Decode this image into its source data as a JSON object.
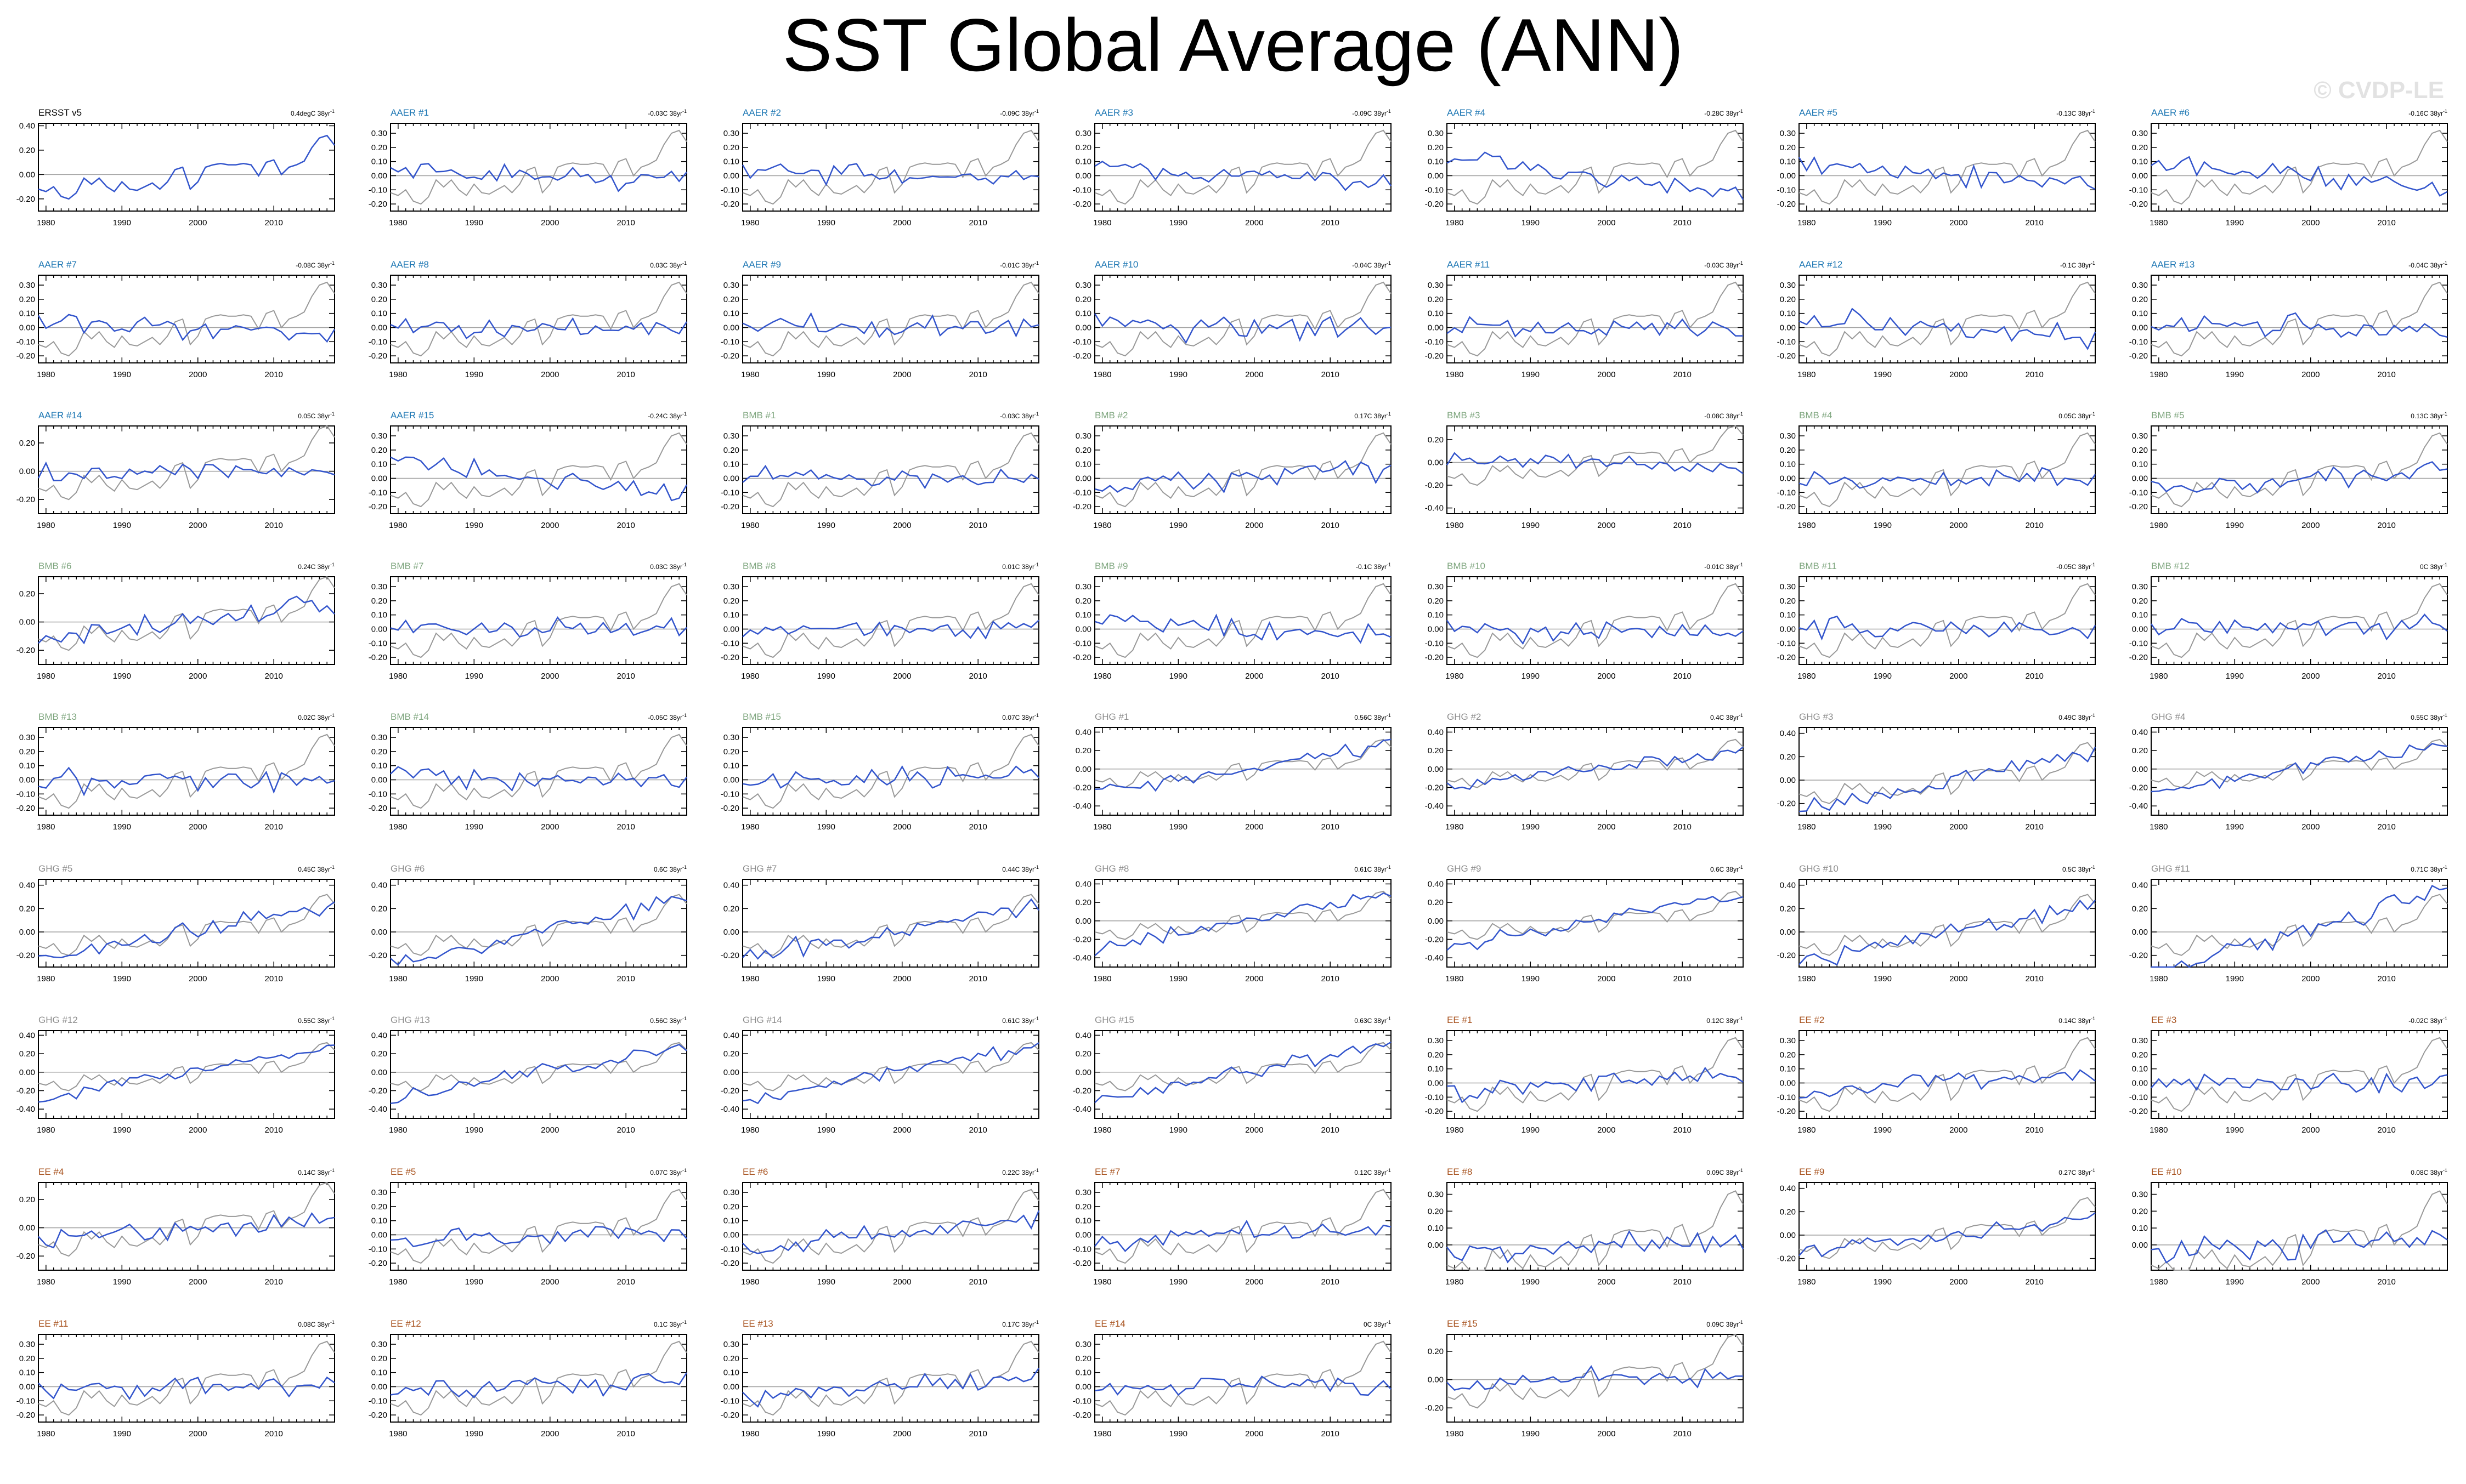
{
  "title": "SST Global Average (ANN)",
  "watermark": "© CVDP-LE",
  "chart_data": {
    "type": "line",
    "x_range": [
      1979,
      2018
    ],
    "x_ticks": [
      1980,
      1990,
      2000,
      2010
    ],
    "reference_series_color": "#999999",
    "colors": {
      "ERSST": "#000000",
      "AAER": "#1f78b4",
      "BMB": "#7fa67f",
      "GHG": "#8c8c8c",
      "EE": "#a8531f",
      "line": "#3355cc",
      "obs": "#000000"
    },
    "observed": {
      "label": "ERSST v5",
      "trend": "0.4degC 38yr",
      "years": [
        1979,
        1980,
        1981,
        1982,
        1983,
        1984,
        1985,
        1986,
        1987,
        1988,
        1989,
        1990,
        1991,
        1992,
        1993,
        1994,
        1995,
        1996,
        1997,
        1998,
        1999,
        2000,
        2001,
        2002,
        2003,
        2004,
        2005,
        2006,
        2007,
        2008,
        2009,
        2010,
        2011,
        2012,
        2013,
        2014,
        2015,
        2016,
        2017,
        2018
      ],
      "values": [
        -0.12,
        -0.14,
        -0.1,
        -0.18,
        -0.2,
        -0.15,
        -0.03,
        -0.08,
        -0.03,
        -0.1,
        -0.14,
        -0.06,
        -0.12,
        -0.13,
        -0.1,
        -0.07,
        -0.12,
        -0.06,
        0.04,
        0.06,
        -0.12,
        -0.06,
        0.06,
        0.08,
        0.09,
        0.08,
        0.08,
        0.09,
        0.08,
        -0.01,
        0.1,
        0.12,
        0.0,
        0.06,
        0.08,
        0.11,
        0.22,
        0.3,
        0.32,
        0.24
      ]
    },
    "panels": [
      {
        "label": "ERSST v5",
        "group": "ERSST",
        "trend": "0.4degC 38yr",
        "yticks": [
          "0.40",
          "0.20",
          "0.00",
          "-0.20"
        ],
        "ylim": [
          -0.3,
          0.42
        ]
      },
      {
        "label": "AAER #1",
        "group": "AAER",
        "trend": "-0.03C 38yr",
        "yticks": [
          "0.30",
          "0.20",
          "0.10",
          "0.00",
          "-0.10",
          "-0.20"
        ],
        "ylim": [
          -0.25,
          0.37
        ]
      },
      {
        "label": "AAER #2",
        "group": "AAER",
        "trend": "-0.09C 38yr",
        "yticks": [
          "0.30",
          "0.20",
          "0.10",
          "0.00",
          "-0.10",
          "-0.20"
        ],
        "ylim": [
          -0.25,
          0.37
        ]
      },
      {
        "label": "AAER #3",
        "group": "AAER",
        "trend": "-0.09C 38yr",
        "yticks": [
          "0.30",
          "0.20",
          "0.10",
          "0.00",
          "-0.10",
          "-0.20"
        ],
        "ylim": [
          -0.25,
          0.37
        ]
      },
      {
        "label": "AAER #4",
        "group": "AAER",
        "trend": "-0.28C 38yr",
        "yticks": [
          "0.30",
          "0.20",
          "0.10",
          "0.00",
          "-0.10",
          "-0.20"
        ],
        "ylim": [
          -0.25,
          0.37
        ]
      },
      {
        "label": "AAER #5",
        "group": "AAER",
        "trend": "-0.13C 38yr",
        "yticks": [
          "0.30",
          "0.20",
          "0.10",
          "0.00",
          "-0.10",
          "-0.20"
        ],
        "ylim": [
          -0.25,
          0.37
        ]
      },
      {
        "label": "AAER #6",
        "group": "AAER",
        "trend": "-0.16C 38yr",
        "yticks": [
          "0.30",
          "0.20",
          "0.10",
          "0.00",
          "-0.10",
          "-0.20"
        ],
        "ylim": [
          -0.25,
          0.37
        ]
      },
      {
        "label": "AAER #7",
        "group": "AAER",
        "trend": "-0.08C 38yr",
        "yticks": [
          "0.30",
          "0.20",
          "0.10",
          "0.00",
          "-0.10",
          "-0.20"
        ],
        "ylim": [
          -0.25,
          0.37
        ]
      },
      {
        "label": "AAER #8",
        "group": "AAER",
        "trend": "0.03C 38yr",
        "yticks": [
          "0.30",
          "0.20",
          "0.10",
          "0.00",
          "-0.10",
          "-0.20"
        ],
        "ylim": [
          -0.25,
          0.37
        ]
      },
      {
        "label": "AAER #9",
        "group": "AAER",
        "trend": "-0.01C 38yr",
        "yticks": [
          "0.30",
          "0.20",
          "0.10",
          "0.00",
          "-0.10",
          "-0.20"
        ],
        "ylim": [
          -0.25,
          0.37
        ]
      },
      {
        "label": "AAER #10",
        "group": "AAER",
        "trend": "-0.04C 38yr",
        "yticks": [
          "0.30",
          "0.20",
          "0.10",
          "0.00",
          "-0.10",
          "-0.20"
        ],
        "ylim": [
          -0.25,
          0.37
        ]
      },
      {
        "label": "AAER #11",
        "group": "AAER",
        "trend": "-0.03C 38yr",
        "yticks": [
          "0.30",
          "0.20",
          "0.10",
          "0.00",
          "-0.10",
          "-0.20"
        ],
        "ylim": [
          -0.25,
          0.37
        ]
      },
      {
        "label": "AAER #12",
        "group": "AAER",
        "trend": "-0.1C 38yr",
        "yticks": [
          "0.30",
          "0.20",
          "0.10",
          "0.00",
          "-0.10",
          "-0.20"
        ],
        "ylim": [
          -0.25,
          0.37
        ]
      },
      {
        "label": "AAER #13",
        "group": "AAER",
        "trend": "-0.04C 38yr",
        "yticks": [
          "0.30",
          "0.20",
          "0.10",
          "0.00",
          "-0.10",
          "-0.20"
        ],
        "ylim": [
          -0.25,
          0.37
        ]
      },
      {
        "label": "AAER #14",
        "group": "AAER",
        "trend": "0.05C 38yr",
        "yticks": [
          "0.20",
          "0.00",
          "-0.20"
        ],
        "ylim": [
          -0.3,
          0.32
        ]
      },
      {
        "label": "AAER #15",
        "group": "AAER",
        "trend": "-0.24C 38yr",
        "yticks": [
          "0.30",
          "0.20",
          "0.10",
          "0.00",
          "-0.10",
          "-0.20"
        ],
        "ylim": [
          -0.25,
          0.37
        ]
      },
      {
        "label": "BMB #1",
        "group": "BMB",
        "trend": "-0.03C 38yr",
        "yticks": [
          "0.30",
          "0.20",
          "0.10",
          "0.00",
          "-0.10",
          "-0.20"
        ],
        "ylim": [
          -0.25,
          0.37
        ]
      },
      {
        "label": "BMB #2",
        "group": "BMB",
        "trend": "0.17C 38yr",
        "yticks": [
          "0.30",
          "0.20",
          "0.10",
          "0.00",
          "-0.10",
          "-0.20"
        ],
        "ylim": [
          -0.25,
          0.37
        ]
      },
      {
        "label": "BMB #3",
        "group": "BMB",
        "trend": "-0.08C 38yr",
        "yticks": [
          "0.20",
          "0.00",
          "-0.20",
          "-0.40"
        ],
        "ylim": [
          -0.45,
          0.32
        ]
      },
      {
        "label": "BMB #4",
        "group": "BMB",
        "trend": "0.05C 38yr",
        "yticks": [
          "0.30",
          "0.20",
          "0.10",
          "0.00",
          "-0.10",
          "-0.20"
        ],
        "ylim": [
          -0.25,
          0.37
        ]
      },
      {
        "label": "BMB #5",
        "group": "BMB",
        "trend": "0.13C 38yr",
        "yticks": [
          "0.30",
          "0.20",
          "0.10",
          "0.00",
          "-0.10",
          "-0.20"
        ],
        "ylim": [
          -0.25,
          0.37
        ]
      },
      {
        "label": "BMB #6",
        "group": "BMB",
        "trend": "0.24C 38yr",
        "yticks": [
          "0.20",
          "0.00",
          "-0.20"
        ],
        "ylim": [
          -0.3,
          0.32
        ]
      },
      {
        "label": "BMB #7",
        "group": "BMB",
        "trend": "0.03C 38yr",
        "yticks": [
          "0.30",
          "0.20",
          "0.10",
          "0.00",
          "-0.10",
          "-0.20"
        ],
        "ylim": [
          -0.25,
          0.37
        ]
      },
      {
        "label": "BMB #8",
        "group": "BMB",
        "trend": "0.01C 38yr",
        "yticks": [
          "0.30",
          "0.20",
          "0.10",
          "0.00",
          "-0.10",
          "-0.20"
        ],
        "ylim": [
          -0.25,
          0.37
        ]
      },
      {
        "label": "BMB #9",
        "group": "BMB",
        "trend": "-0.1C 38yr",
        "yticks": [
          "0.30",
          "0.20",
          "0.10",
          "0.00",
          "-0.10",
          "-0.20"
        ],
        "ylim": [
          -0.25,
          0.37
        ]
      },
      {
        "label": "BMB #10",
        "group": "BMB",
        "trend": "-0.01C 38yr",
        "yticks": [
          "0.30",
          "0.20",
          "0.10",
          "0.00",
          "-0.10",
          "-0.20"
        ],
        "ylim": [
          -0.25,
          0.37
        ]
      },
      {
        "label": "BMB #11",
        "group": "BMB",
        "trend": "-0.05C 38yr",
        "yticks": [
          "0.30",
          "0.20",
          "0.10",
          "0.00",
          "-0.10",
          "-0.20"
        ],
        "ylim": [
          -0.25,
          0.37
        ]
      },
      {
        "label": "BMB #12",
        "group": "BMB",
        "trend": "0C 38yr",
        "yticks": [
          "0.30",
          "0.20",
          "0.10",
          "0.00",
          "-0.10",
          "-0.20"
        ],
        "ylim": [
          -0.25,
          0.37
        ]
      },
      {
        "label": "BMB #13",
        "group": "BMB",
        "trend": "0.02C 38yr",
        "yticks": [
          "0.30",
          "0.20",
          "0.10",
          "0.00",
          "-0.10",
          "-0.20"
        ],
        "ylim": [
          -0.25,
          0.37
        ]
      },
      {
        "label": "BMB #14",
        "group": "BMB",
        "trend": "-0.05C 38yr",
        "yticks": [
          "0.30",
          "0.20",
          "0.10",
          "0.00",
          "-0.10",
          "-0.20"
        ],
        "ylim": [
          -0.25,
          0.37
        ]
      },
      {
        "label": "BMB #15",
        "group": "BMB",
        "trend": "0.07C 38yr",
        "yticks": [
          "0.30",
          "0.20",
          "0.10",
          "0.00",
          "-0.10",
          "-0.20"
        ],
        "ylim": [
          -0.25,
          0.37
        ]
      },
      {
        "label": "GHG #1",
        "group": "GHG",
        "trend": "0.56C 38yr",
        "yticks": [
          "0.40",
          "0.20",
          "0.00",
          "-0.20",
          "-0.40"
        ],
        "ylim": [
          -0.5,
          0.45
        ]
      },
      {
        "label": "GHG #2",
        "group": "GHG",
        "trend": "0.4C 38yr",
        "yticks": [
          "0.40",
          "0.20",
          "0.00",
          "-0.20",
          "-0.40"
        ],
        "ylim": [
          -0.5,
          0.45
        ]
      },
      {
        "label": "GHG #3",
        "group": "GHG",
        "trend": "0.49C 38yr",
        "yticks": [
          "0.40",
          "0.20",
          "0.00",
          "-0.20"
        ],
        "ylim": [
          -0.3,
          0.45
        ]
      },
      {
        "label": "GHG #4",
        "group": "GHG",
        "trend": "0.55C 38yr",
        "yticks": [
          "0.40",
          "0.20",
          "0.00",
          "-0.20",
          "-0.40"
        ],
        "ylim": [
          -0.5,
          0.45
        ]
      },
      {
        "label": "GHG #5",
        "group": "GHG",
        "trend": "0.45C 38yr",
        "yticks": [
          "0.40",
          "0.20",
          "0.00",
          "-0.20"
        ],
        "ylim": [
          -0.3,
          0.45
        ]
      },
      {
        "label": "GHG #6",
        "group": "GHG",
        "trend": "0.6C 38yr",
        "yticks": [
          "0.40",
          "0.20",
          "0.00",
          "-0.20"
        ],
        "ylim": [
          -0.3,
          0.45
        ]
      },
      {
        "label": "GHG #7",
        "group": "GHG",
        "trend": "0.44C 38yr",
        "yticks": [
          "0.40",
          "0.20",
          "0.00",
          "-0.20"
        ],
        "ylim": [
          -0.3,
          0.45
        ]
      },
      {
        "label": "GHG #8",
        "group": "GHG",
        "trend": "0.61C 38yr",
        "yticks": [
          "0.40",
          "0.20",
          "0.00",
          "-0.20",
          "-0.40"
        ],
        "ylim": [
          -0.5,
          0.45
        ]
      },
      {
        "label": "GHG #9",
        "group": "GHG",
        "trend": "0.6C 38yr",
        "yticks": [
          "0.40",
          "0.20",
          "0.00",
          "-0.20",
          "-0.40"
        ],
        "ylim": [
          -0.5,
          0.45
        ]
      },
      {
        "label": "GHG #10",
        "group": "GHG",
        "trend": "0.5C 38yr",
        "yticks": [
          "0.40",
          "0.20",
          "0.00",
          "-0.20"
        ],
        "ylim": [
          -0.3,
          0.45
        ]
      },
      {
        "label": "GHG #11",
        "group": "GHG",
        "trend": "0.71C 38yr",
        "yticks": [
          "0.40",
          "0.20",
          "0.00",
          "-0.20"
        ],
        "ylim": [
          -0.3,
          0.45
        ]
      },
      {
        "label": "GHG #12",
        "group": "GHG",
        "trend": "0.55C 38yr",
        "yticks": [
          "0.40",
          "0.20",
          "0.00",
          "-0.20",
          "-0.40"
        ],
        "ylim": [
          -0.5,
          0.45
        ]
      },
      {
        "label": "GHG #13",
        "group": "GHG",
        "trend": "0.56C 38yr",
        "yticks": [
          "0.40",
          "0.20",
          "0.00",
          "-0.20",
          "-0.40"
        ],
        "ylim": [
          -0.5,
          0.45
        ]
      },
      {
        "label": "GHG #14",
        "group": "GHG",
        "trend": "0.61C 38yr",
        "yticks": [
          "0.40",
          "0.20",
          "0.00",
          "-0.20",
          "-0.40"
        ],
        "ylim": [
          -0.5,
          0.45
        ]
      },
      {
        "label": "GHG #15",
        "group": "GHG",
        "trend": "0.63C 38yr",
        "yticks": [
          "0.40",
          "0.20",
          "0.00",
          "-0.20",
          "-0.40"
        ],
        "ylim": [
          -0.5,
          0.45
        ]
      },
      {
        "label": "EE #1",
        "group": "EE",
        "trend": "0.12C 38yr",
        "yticks": [
          "0.30",
          "0.20",
          "0.10",
          "0.00",
          "-0.10",
          "-0.20"
        ],
        "ylim": [
          -0.25,
          0.37
        ]
      },
      {
        "label": "EE #2",
        "group": "EE",
        "trend": "0.14C 38yr",
        "yticks": [
          "0.30",
          "0.20",
          "0.10",
          "0.00",
          "-0.10",
          "-0.20"
        ],
        "ylim": [
          -0.25,
          0.37
        ]
      },
      {
        "label": "EE #3",
        "group": "EE",
        "trend": "-0.02C 38yr",
        "yticks": [
          "0.30",
          "0.20",
          "0.10",
          "0.00",
          "-0.10",
          "-0.20"
        ],
        "ylim": [
          -0.25,
          0.37
        ]
      },
      {
        "label": "EE #4",
        "group": "EE",
        "trend": "0.14C 38yr",
        "yticks": [
          "0.20",
          "0.00",
          "-0.20"
        ],
        "ylim": [
          -0.3,
          0.32
        ]
      },
      {
        "label": "EE #5",
        "group": "EE",
        "trend": "0.07C 38yr",
        "yticks": [
          "0.30",
          "0.20",
          "0.10",
          "0.00",
          "-0.10",
          "-0.20"
        ],
        "ylim": [
          -0.25,
          0.37
        ]
      },
      {
        "label": "EE #6",
        "group": "EE",
        "trend": "0.22C 38yr",
        "yticks": [
          "0.30",
          "0.20",
          "0.10",
          "0.00",
          "-0.10",
          "-0.20"
        ],
        "ylim": [
          -0.25,
          0.37
        ]
      },
      {
        "label": "EE #7",
        "group": "EE",
        "trend": "0.12C 38yr",
        "yticks": [
          "0.30",
          "0.20",
          "0.10",
          "0.00",
          "-0.10",
          "-0.20"
        ],
        "ylim": [
          -0.25,
          0.37
        ]
      },
      {
        "label": "EE #8",
        "group": "EE",
        "trend": "0.09C 38yr",
        "yticks": [
          "0.30",
          "0.20",
          "0.10",
          "0.00"
        ],
        "ylim": [
          -0.15,
          0.37
        ]
      },
      {
        "label": "EE #9",
        "group": "EE",
        "trend": "0.27C 38yr",
        "yticks": [
          "0.40",
          "0.20",
          "0.00",
          "-0.20"
        ],
        "ylim": [
          -0.3,
          0.45
        ]
      },
      {
        "label": "EE #10",
        "group": "EE",
        "trend": "0.08C 38yr",
        "yticks": [
          "0.30",
          "0.20",
          "0.10",
          "0.00"
        ],
        "ylim": [
          -0.15,
          0.37
        ]
      },
      {
        "label": "EE #11",
        "group": "EE",
        "trend": "0.08C 38yr",
        "yticks": [
          "0.30",
          "0.20",
          "0.10",
          "0.00",
          "-0.10",
          "-0.20"
        ],
        "ylim": [
          -0.25,
          0.37
        ]
      },
      {
        "label": "EE #12",
        "group": "EE",
        "trend": "0.1C 38yr",
        "yticks": [
          "0.30",
          "0.20",
          "0.10",
          "0.00",
          "-0.10",
          "-0.20"
        ],
        "ylim": [
          -0.25,
          0.37
        ]
      },
      {
        "label": "EE #13",
        "group": "EE",
        "trend": "0.17C 38yr",
        "yticks": [
          "0.30",
          "0.20",
          "0.10",
          "0.00",
          "-0.10",
          "-0.20"
        ],
        "ylim": [
          -0.25,
          0.37
        ]
      },
      {
        "label": "EE #14",
        "group": "EE",
        "trend": "0C 38yr",
        "yticks": [
          "0.30",
          "0.20",
          "0.10",
          "0.00",
          "-0.10",
          "-0.20"
        ],
        "ylim": [
          -0.25,
          0.37
        ]
      },
      {
        "label": "EE #15",
        "group": "EE",
        "trend": "0.09C 38yr",
        "yticks": [
          "0.20",
          "0.00",
          "-0.20"
        ],
        "ylim": [
          -0.3,
          0.32
        ]
      }
    ]
  }
}
